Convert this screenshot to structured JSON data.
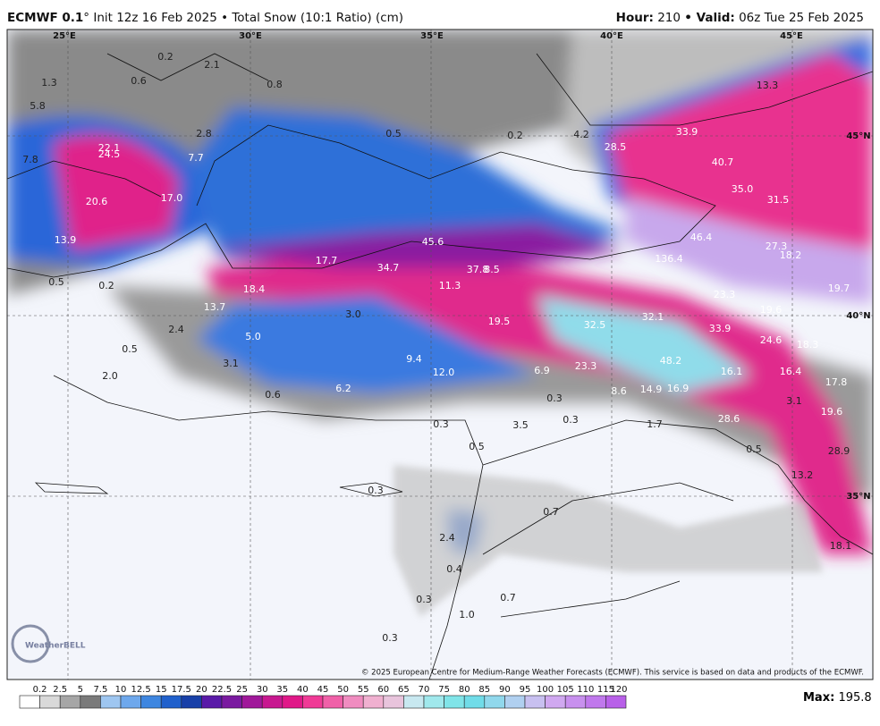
{
  "header": {
    "model": "ECMWF 0.1",
    "info": "° Init 12z 16 Feb 2025 • Total Snow (10:1 Ratio) (cm)",
    "hour_label": "Hour:",
    "hour": "210",
    "valid_label": "• Valid:",
    "valid": "06z Tue 25 Feb 2025"
  },
  "map": {
    "grid_labels": [
      "25°E",
      "30°E",
      "35°E",
      "40°E",
      "45°E",
      "45°N",
      "40°N",
      "35°N"
    ],
    "labels": [
      "0.2",
      "2.1",
      "0.6",
      "1.3",
      "0.8",
      "5.8",
      "13.3",
      "2.8",
      "0.5",
      "0.2",
      "4.2",
      "33.9",
      "22.1",
      "24.5",
      "7.8",
      "7.7",
      "28.5",
      "40.7",
      "35.0",
      "31.5",
      "20.6",
      "17.0",
      "13.9",
      "45.6",
      "46.4",
      "27.3",
      "18.2",
      "17.7",
      "34.7",
      "37.8",
      "8.5",
      "136.4",
      "0.5",
      "0.2",
      "18.4",
      "11.3",
      "19.7",
      "23.3",
      "13.7",
      "3.0",
      "19.6",
      "19.5",
      "32.5",
      "32.1",
      "33.9",
      "2.4",
      "5.0",
      "24.6",
      "18.3",
      "9.4",
      "48.2",
      "23.3",
      "6.9",
      "3.1",
      "12.0",
      "16.1",
      "16.4",
      "0.5",
      "2.0",
      "17.8",
      "14.9",
      "16.9",
      "8.6",
      "6.2",
      "0.6",
      "0.3",
      "3.1",
      "19.6",
      "28.6",
      "0.3",
      "3.5",
      "0.3",
      "1.7",
      "0.5",
      "0.5",
      "28.9",
      "13.2",
      "0.3",
      "0.7",
      "18.1",
      "2.4",
      "0.4",
      "0.7",
      "0.3",
      "1.0",
      "0.3"
    ]
  },
  "colorbar": {
    "ticks": [
      "0.2",
      "2.5",
      "5",
      "7.5",
      "10",
      "12.5",
      "15",
      "17.5",
      "20",
      "22.5",
      "25",
      "30",
      "35",
      "40",
      "45",
      "50",
      "55",
      "60",
      "65",
      "70",
      "75",
      "80",
      "85",
      "90",
      "95",
      "100",
      "105",
      "110",
      "115",
      "120"
    ],
    "colors": [
      "#ffffff",
      "#d9d9d9",
      "#a6a6a6",
      "#7a7a7a",
      "#9ec6f0",
      "#6ea8ec",
      "#3e86e0",
      "#2060cc",
      "#1840a8",
      "#5a1aa8",
      "#7a1aa0",
      "#a0189a",
      "#c81890",
      "#e01888",
      "#f03a96",
      "#f060a8",
      "#f08cc0",
      "#f0b0d0",
      "#e8c4dc",
      "#c8e8f0",
      "#a0e8ec",
      "#80e4e8",
      "#70dce8",
      "#90d8ec",
      "#b0d0f0",
      "#c8c0f0",
      "#d0a8f0",
      "#c890ee",
      "#c078ec",
      "#b860e8"
    ]
  },
  "footer": {
    "copyright": "© 2025 European Centre for Medium-Range Weather Forecasts (ECMWF). This service is based on data and products of the ECMWF.",
    "max_label": "Max:",
    "max_value": "195.8"
  },
  "logo": "WeatherBELL"
}
